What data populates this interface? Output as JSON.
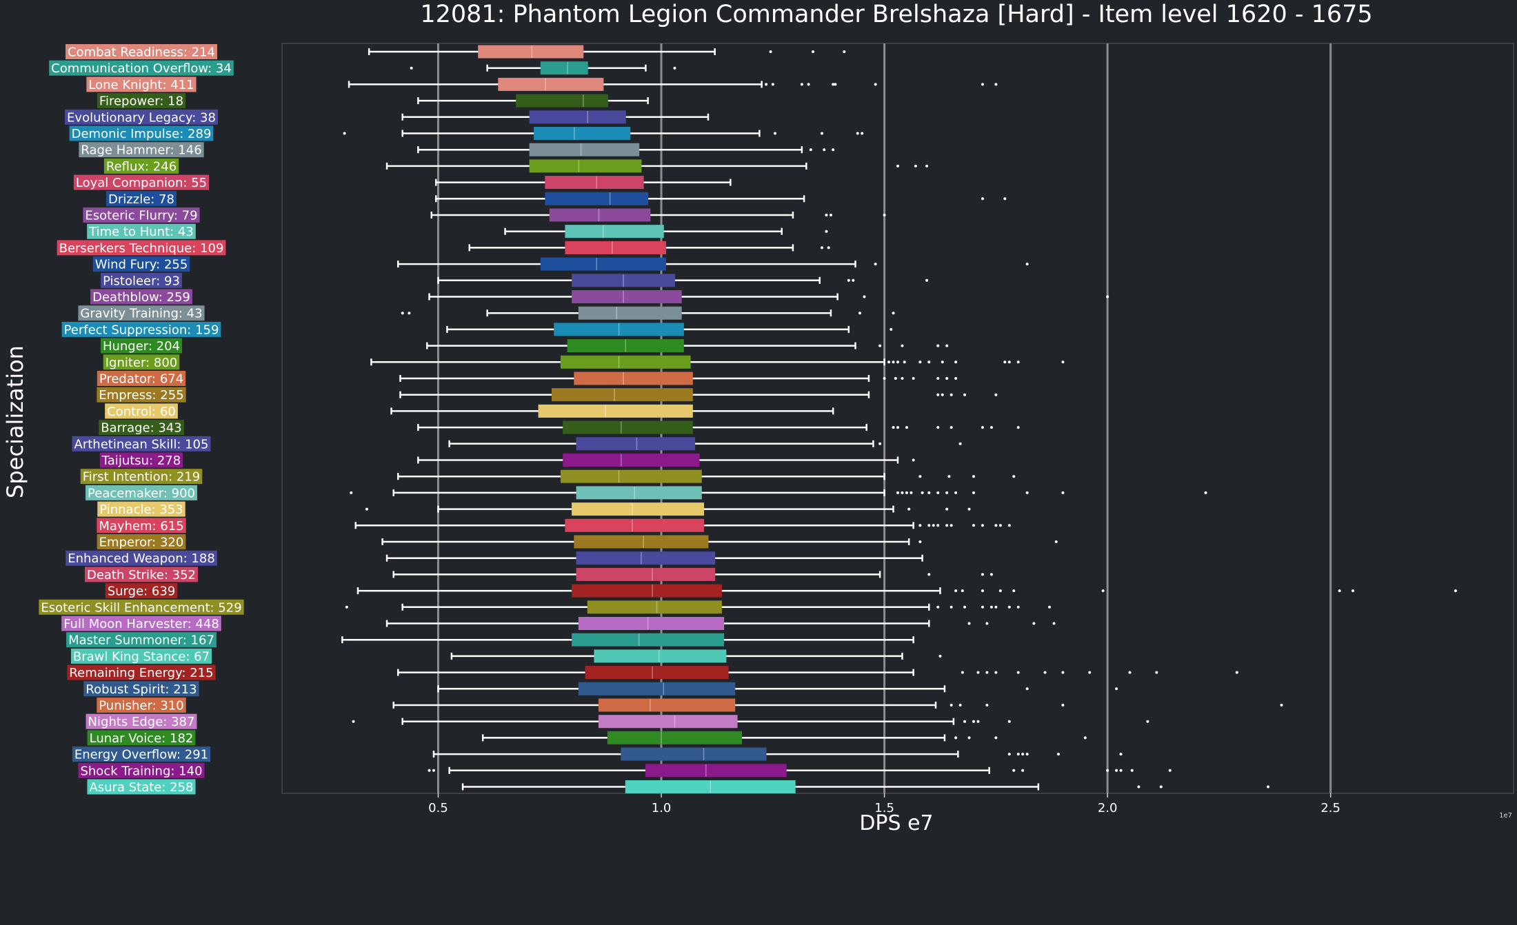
{
  "chart_data": {
    "type": "box",
    "title": "12081: Phantom Legion Commander Brelshaza [Hard] - Item level 1620 - 1675",
    "xlabel": "DPS e7",
    "ylabel": "Specialization",
    "x_multiplier": "1e7",
    "xlim": [
      0.15,
      2.91
    ],
    "xticks": [
      "0.5",
      "1.0",
      "1.5",
      "2.0",
      "2.5"
    ],
    "xtick_values": [
      0.5,
      1.0,
      1.5,
      2.0,
      2.5
    ],
    "grid": "vertical",
    "series": [
      {
        "label": "Combat Readiness: 214",
        "color": "#e0877b",
        "stats": [
          0.345,
          0.59,
          0.71,
          0.825,
          1.12
        ],
        "outliers": [
          1.245,
          1.34,
          1.41
        ]
      },
      {
        "label": "Communication Overflow: 34",
        "color": "#2a9d8f",
        "stats": [
          0.61,
          0.73,
          0.79,
          0.835,
          0.965
        ],
        "outliers": [
          0.44,
          1.03
        ]
      },
      {
        "label": "Lone Knight: 411",
        "color": "#e0877b",
        "stats": [
          0.3,
          0.635,
          0.74,
          0.87,
          1.225
        ],
        "outliers": [
          1.235,
          1.25,
          1.315,
          1.33,
          1.385,
          1.39,
          1.48,
          1.72,
          1.75
        ]
      },
      {
        "label": "Firepower: 18",
        "color": "#355e1a",
        "stats": [
          0.455,
          0.675,
          0.825,
          0.88,
          0.97
        ],
        "outliers": []
      },
      {
        "label": "Evolutionary Legacy: 38",
        "color": "#4a4a9c",
        "stats": [
          0.42,
          0.705,
          0.835,
          0.92,
          1.105
        ],
        "outliers": []
      },
      {
        "label": "Demonic Impulse: 289",
        "color": "#1a8cb5",
        "stats": [
          0.42,
          0.715,
          0.805,
          0.93,
          1.22
        ],
        "outliers": [
          0.29,
          1.255,
          1.36,
          1.44,
          1.45
        ]
      },
      {
        "label": "Rage Hammer: 146",
        "color": "#7c8f96",
        "stats": [
          0.455,
          0.705,
          0.82,
          0.95,
          1.315
        ],
        "outliers": [
          1.335,
          1.365,
          1.385
        ]
      },
      {
        "label": "Reflux: 246",
        "color": "#6a9e1c",
        "stats": [
          0.385,
          0.705,
          0.815,
          0.955,
          1.325
        ],
        "outliers": [
          1.53,
          1.57,
          1.595
        ]
      },
      {
        "label": "Loyal Companion: 55",
        "color": "#cc4466",
        "stats": [
          0.495,
          0.74,
          0.855,
          0.96,
          1.155
        ],
        "outliers": []
      },
      {
        "label": "Drizzle: 78",
        "color": "#1e4f9c",
        "stats": [
          0.495,
          0.74,
          0.885,
          0.97,
          1.32
        ],
        "outliers": [
          1.72,
          1.77
        ]
      },
      {
        "label": "Esoteric Flurry: 79",
        "color": "#8b4a9c",
        "stats": [
          0.485,
          0.75,
          0.86,
          0.975,
          1.295
        ],
        "outliers": [
          1.37,
          1.38,
          1.5
        ]
      },
      {
        "label": "Time to Hunt: 43",
        "color": "#5ec4b6",
        "stats": [
          0.65,
          0.785,
          0.87,
          1.005,
          1.27
        ],
        "outliers": [
          1.37
        ]
      },
      {
        "label": "Berserkers Technique: 109",
        "color": "#d9435b",
        "stats": [
          0.57,
          0.785,
          0.89,
          1.01,
          1.295
        ],
        "outliers": [
          1.36,
          1.375
        ]
      },
      {
        "label": "Wind Fury: 255",
        "color": "#1e4f9c",
        "stats": [
          0.41,
          0.73,
          0.855,
          1.01,
          1.435
        ],
        "outliers": [
          1.48,
          1.82
        ]
      },
      {
        "label": "Pistoleer: 93",
        "color": "#4a4a9c",
        "stats": [
          0.5,
          0.8,
          0.915,
          1.03,
          1.355
        ],
        "outliers": [
          1.42,
          1.43,
          1.595
        ]
      },
      {
        "label": "Deathblow: 259",
        "color": "#8b4a9c",
        "stats": [
          0.48,
          0.8,
          0.915,
          1.045,
          1.395
        ],
        "outliers": [
          1.455,
          2.0
        ]
      },
      {
        "label": "Gravity Training: 43",
        "color": "#7c8f96",
        "stats": [
          0.61,
          0.815,
          0.9,
          1.045,
          1.38
        ],
        "outliers": [
          0.42,
          0.435,
          1.445,
          1.52
        ]
      },
      {
        "label": "Perfect Suppression: 159",
        "color": "#1a8cb5",
        "stats": [
          0.52,
          0.76,
          0.905,
          1.05,
          1.42
        ],
        "outliers": [
          1.515
        ]
      },
      {
        "label": "Hunger: 204",
        "color": "#2e8b22",
        "stats": [
          0.475,
          0.79,
          0.92,
          1.05,
          1.435
        ],
        "outliers": [
          1.49,
          1.54,
          1.62,
          1.64
        ]
      },
      {
        "label": "Igniter: 800",
        "color": "#6a9e1c",
        "stats": [
          0.35,
          0.775,
          0.905,
          1.065,
          1.5
        ],
        "outliers": [
          1.51,
          1.52,
          1.53,
          1.545,
          1.58,
          1.6,
          1.63,
          1.66,
          1.77,
          1.78,
          1.8,
          1.9
        ]
      },
      {
        "label": "Predator: 674",
        "color": "#cf6b45",
        "stats": [
          0.415,
          0.805,
          0.915,
          1.07,
          1.465
        ],
        "outliers": [
          1.5,
          1.525,
          1.54,
          1.565,
          1.62,
          1.64,
          1.66
        ]
      },
      {
        "label": "Empress: 255",
        "color": "#9c7a22",
        "stats": [
          0.415,
          0.755,
          0.895,
          1.07,
          1.465
        ],
        "outliers": [
          1.62,
          1.63,
          1.65,
          1.68,
          1.75
        ]
      },
      {
        "label": "Control: 60",
        "color": "#e6c96b",
        "stats": [
          0.395,
          0.725,
          0.875,
          1.07,
          1.385
        ],
        "outliers": []
      },
      {
        "label": "Barrage: 343",
        "color": "#355e1a",
        "stats": [
          0.455,
          0.78,
          0.91,
          1.07,
          1.46
        ],
        "outliers": [
          1.52,
          1.53,
          1.55,
          1.62,
          1.65,
          1.72,
          1.74,
          1.8
        ]
      },
      {
        "label": "Arthetinean Skill: 105",
        "color": "#4a4a9c",
        "stats": [
          0.525,
          0.81,
          0.945,
          1.075,
          1.475
        ],
        "outliers": [
          1.49,
          1.67
        ]
      },
      {
        "label": "Taijutsu: 278",
        "color": "#8b1a8b",
        "stats": [
          0.455,
          0.78,
          0.91,
          1.085,
          1.53
        ],
        "outliers": [
          1.565
        ]
      },
      {
        "label": "First Intention: 219",
        "color": "#8f8f22",
        "stats": [
          0.41,
          0.775,
          0.905,
          1.09,
          1.5
        ],
        "outliers": [
          1.58,
          1.645,
          1.7,
          1.79
        ]
      },
      {
        "label": "Peacemaker: 900",
        "color": "#6fc0b6",
        "stats": [
          0.4,
          0.81,
          0.94,
          1.09,
          1.5
        ],
        "outliers": [
          0.305,
          1.53,
          1.54,
          1.55,
          1.56,
          1.585,
          1.6,
          1.62,
          1.64,
          1.66,
          1.7,
          1.82,
          1.9,
          2.22
        ]
      },
      {
        "label": "Pinnacle: 353",
        "color": "#e6c96b",
        "stats": [
          0.5,
          0.8,
          0.935,
          1.095,
          1.52
        ],
        "outliers": [
          0.34,
          1.555,
          1.64,
          1.69
        ]
      },
      {
        "label": "Mayhem: 615",
        "color": "#d9435b",
        "stats": [
          0.315,
          0.785,
          0.935,
          1.095,
          1.565
        ],
        "outliers": [
          1.58,
          1.6,
          1.61,
          1.62,
          1.64,
          1.65,
          1.7,
          1.72,
          1.75,
          1.76,
          1.78
        ]
      },
      {
        "label": "Emperor: 320",
        "color": "#9c7a22",
        "stats": [
          0.375,
          0.805,
          0.96,
          1.105,
          1.555
        ],
        "outliers": [
          1.58,
          1.885
        ]
      },
      {
        "label": "Enhanced Weapon: 188",
        "color": "#4a4a9c",
        "stats": [
          0.385,
          0.81,
          0.955,
          1.12,
          1.585
        ],
        "outliers": []
      },
      {
        "label": "Death Strike: 352",
        "color": "#cc4466",
        "stats": [
          0.4,
          0.81,
          0.98,
          1.12,
          1.49
        ],
        "outliers": [
          1.6,
          1.72,
          1.74
        ]
      },
      {
        "label": "Surge: 639",
        "color": "#a32222",
        "stats": [
          0.32,
          0.8,
          0.98,
          1.135,
          1.625
        ],
        "outliers": [
          1.66,
          1.675,
          1.72,
          1.76,
          1.79,
          1.99,
          2.52,
          2.55,
          2.78
        ]
      },
      {
        "label": "Esoteric Skill Enhancement: 529",
        "color": "#8f8f22",
        "stats": [
          0.42,
          0.835,
          0.99,
          1.135,
          1.6
        ],
        "outliers": [
          0.295,
          1.62,
          1.65,
          1.68,
          1.72,
          1.74,
          1.75,
          1.78,
          1.8,
          1.87
        ]
      },
      {
        "label": "Full Moon Harvester: 448",
        "color": "#b86bc4",
        "stats": [
          0.385,
          0.815,
          0.97,
          1.14,
          1.6
        ],
        "outliers": [
          1.69,
          1.73,
          1.835,
          1.88
        ]
      },
      {
        "label": "Master Summoner: 167",
        "color": "#2a9d8f",
        "stats": [
          0.285,
          0.8,
          0.95,
          1.14,
          1.565
        ],
        "outliers": []
      },
      {
        "label": "Brawl King Stance: 67",
        "color": "#4fc9b5",
        "stats": [
          0.53,
          0.85,
          0.995,
          1.145,
          1.54
        ],
        "outliers": [
          1.625
        ]
      },
      {
        "label": "Remaining Energy: 215",
        "color": "#a32222",
        "stats": [
          0.41,
          0.83,
          0.98,
          1.15,
          1.565
        ],
        "outliers": [
          1.675,
          1.71,
          1.73,
          1.75,
          1.8,
          1.86,
          1.9,
          1.96,
          2.05,
          2.11,
          2.29
        ]
      },
      {
        "label": "Robust Spirit: 213",
        "color": "#315a8f",
        "stats": [
          0.5,
          0.815,
          1.005,
          1.165,
          1.635
        ],
        "outliers": [
          1.82,
          2.02
        ]
      },
      {
        "label": "Punisher: 310",
        "color": "#cf6b45",
        "stats": [
          0.4,
          0.86,
          0.975,
          1.165,
          1.615
        ],
        "outliers": [
          1.65,
          1.67,
          1.73,
          1.9,
          2.39
        ]
      },
      {
        "label": "Nights Edge: 387",
        "color": "#c47ac4",
        "stats": [
          0.42,
          0.86,
          1.03,
          1.17,
          1.655
        ],
        "outliers": [
          0.31,
          1.68,
          1.7,
          1.71,
          1.78,
          2.09
        ]
      },
      {
        "label": "Lunar Voice: 182",
        "color": "#2e8b22",
        "stats": [
          0.6,
          0.88,
          1.0,
          1.18,
          1.635
        ],
        "outliers": [
          1.66,
          1.69,
          1.75,
          1.95
        ]
      },
      {
        "label": "Energy Overflow: 291",
        "color": "#315a8f",
        "stats": [
          0.49,
          0.91,
          1.095,
          1.235,
          1.665
        ],
        "outliers": [
          1.78,
          1.8,
          1.81,
          1.82,
          1.89,
          2.03
        ]
      },
      {
        "label": "Shock Training: 140",
        "color": "#8b1a8b",
        "stats": [
          0.525,
          0.965,
          1.1,
          1.28,
          1.735
        ],
        "outliers": [
          0.48,
          0.49,
          1.79,
          1.81,
          2.0,
          2.02,
          2.03,
          2.055,
          2.14
        ]
      },
      {
        "label": "Asura State: 258",
        "color": "#4fd1c0",
        "stats": [
          0.555,
          0.92,
          1.11,
          1.3,
          1.845
        ],
        "outliers": [
          2.07,
          2.12,
          2.36
        ]
      }
    ]
  }
}
